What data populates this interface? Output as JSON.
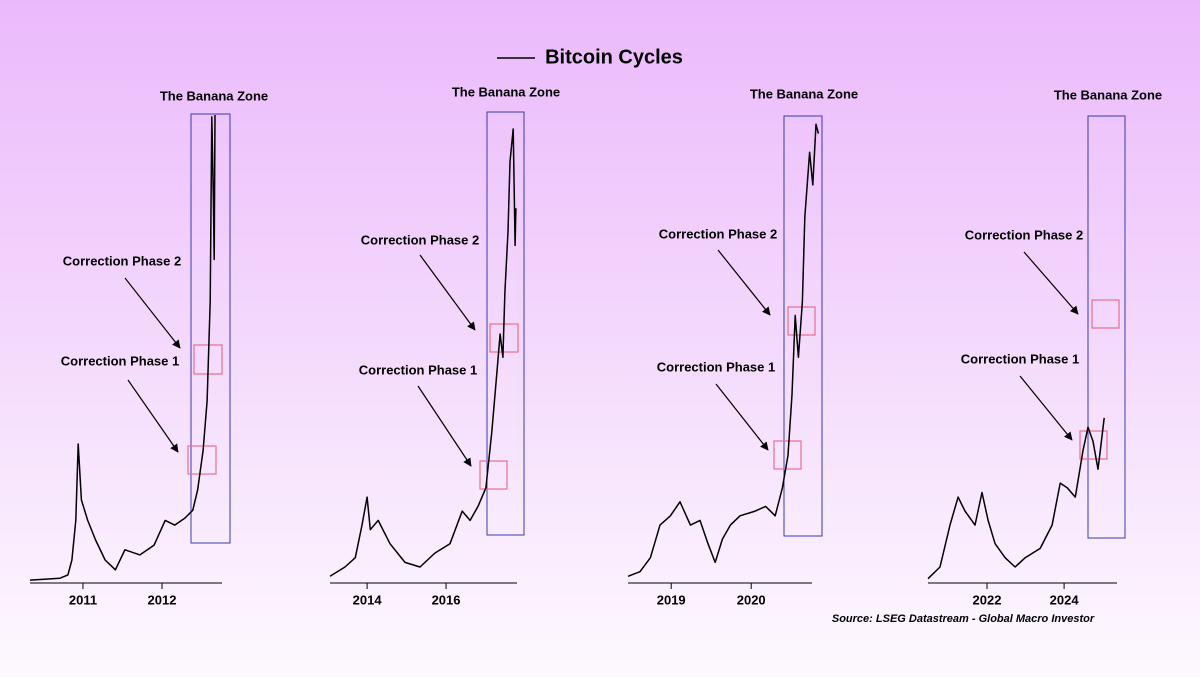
{
  "title": "Bitcoin Cycles",
  "source": "Source: LSEG Datastream - Global Macro Investor",
  "chart_data": [
    {
      "type": "line",
      "xlim": [
        2010.33,
        2012.86
      ],
      "xticks": [
        2011,
        2012
      ],
      "ylim": [
        0,
        100
      ],
      "annotations": {
        "banana_zone": "The Banana Zone",
        "phase2": "Correction Phase 2",
        "phase1": "Correction Phase 1"
      },
      "x": [
        2010.33,
        2010.71,
        2010.81,
        2010.86,
        2010.91,
        2010.94,
        2010.98,
        2011.06,
        2011.16,
        2011.28,
        2011.41,
        2011.53,
        2011.72,
        2011.9,
        2012.04,
        2012.16,
        2012.29,
        2012.39,
        2012.45,
        2012.52,
        2012.57,
        2012.61,
        2012.63,
        2012.65,
        2012.66,
        2012.67
      ],
      "series": [
        {
          "color": "#000000",
          "values": [
            0.2,
            0.6,
            1.3,
            4.5,
            13,
            29.4,
            17.4,
            13,
            8.8,
            4.5,
            2.4,
            6.7,
            5.6,
            7.7,
            13,
            12,
            13.5,
            15.2,
            19.5,
            28,
            38.6,
            60,
            99.6,
            82,
            69,
            100
          ]
        }
      ]
    },
    {
      "type": "line",
      "xlim": [
        2013.06,
        2018.0
      ],
      "xticks": [
        2014,
        2016
      ],
      "ylim": [
        0,
        100
      ],
      "annotations": {
        "banana_zone": "The Banana Zone",
        "phase2": "Correction Phase 2",
        "phase1": "Correction Phase 1"
      },
      "x": [
        2013.06,
        2013.44,
        2013.7,
        2013.87,
        2014.0,
        2014.08,
        2014.28,
        2014.58,
        2014.96,
        2015.34,
        2015.72,
        2016.1,
        2016.41,
        2016.61,
        2016.81,
        2017.01,
        2017.16,
        2017.29,
        2017.37,
        2017.44,
        2017.49,
        2017.57,
        2017.62,
        2017.7,
        2017.75,
        2017.77
      ],
      "series": [
        {
          "color": "#000000",
          "values": [
            1,
            3,
            5,
            12,
            18,
            11,
            13,
            8,
            4,
            3,
            6,
            8,
            15,
            13,
            16,
            20,
            32,
            45,
            53,
            48,
            62,
            75,
            90,
            97,
            72,
            80
          ]
        }
      ]
    },
    {
      "type": "line",
      "xlim": [
        2018.46,
        2020.86
      ],
      "xticks": [
        2019,
        2020
      ],
      "ylim": [
        0,
        100
      ],
      "annotations": {
        "banana_zone": "The Banana Zone",
        "phase2": "Correction Phase 2",
        "phase1": "Correction Phase 1"
      },
      "x": [
        2018.46,
        2018.61,
        2018.74,
        2018.86,
        2018.99,
        2019.11,
        2019.24,
        2019.36,
        2019.46,
        2019.55,
        2019.64,
        2019.74,
        2019.86,
        2020.05,
        2020.18,
        2020.3,
        2020.39,
        2020.46,
        2020.51,
        2020.55,
        2020.59,
        2020.64,
        2020.67,
        2020.73,
        2020.77,
        2020.81,
        2020.84
      ],
      "series": [
        {
          "color": "#000000",
          "values": [
            1,
            2,
            5,
            12,
            14,
            17,
            12,
            13,
            8,
            4,
            9,
            12,
            14,
            15,
            16,
            14,
            20,
            27,
            40,
            57,
            48,
            60,
            78,
            92,
            85,
            98,
            96
          ]
        }
      ]
    },
    {
      "type": "line",
      "xlim": [
        2020.47,
        2025.58
      ],
      "xticks": [
        2022,
        2024
      ],
      "ylim": [
        0,
        100
      ],
      "annotations": {
        "banana_zone": "The Banana Zone",
        "phase2": "Correction Phase 2",
        "phase1": "Correction Phase 1"
      },
      "x": [
        2020.47,
        2020.78,
        2021.04,
        2021.25,
        2021.43,
        2021.69,
        2021.87,
        2022.03,
        2022.21,
        2022.47,
        2022.73,
        2022.99,
        2023.38,
        2023.69,
        2023.9,
        2024.08,
        2024.29,
        2024.49,
        2024.62,
        2024.75,
        2024.88,
        2024.94,
        2025.04
      ],
      "series": [
        {
          "color": "#000000",
          "values": [
            0.5,
            3,
            12,
            18,
            15,
            12,
            19,
            13,
            8,
            5,
            3,
            5,
            7,
            12,
            21,
            20,
            18,
            28,
            33,
            30,
            24,
            28,
            35
          ]
        }
      ]
    }
  ]
}
